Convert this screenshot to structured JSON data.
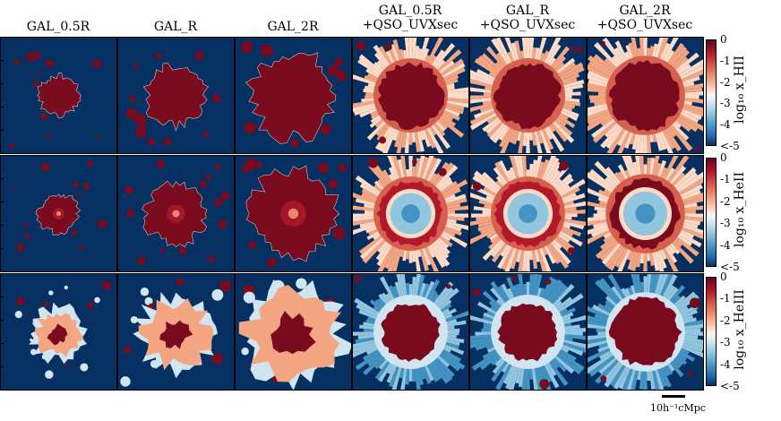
{
  "columns": [
    {
      "line1": "GAL_0.5R",
      "line2": ""
    },
    {
      "line1": "GAL_R",
      "line2": ""
    },
    {
      "line1": "GAL_2R",
      "line2": ""
    },
    {
      "line1": "GAL_0.5R",
      "line2": "+QSO_UVXsec"
    },
    {
      "line1": "GAL_R",
      "line2": "+QSO_UVXsec"
    },
    {
      "line1": "GAL_2R",
      "line2": "+QSO_UVXsec"
    }
  ],
  "rows": [
    {
      "quantity": "log10 x_HII",
      "label_text": "log₁₀ x_HII"
    },
    {
      "quantity": "log10 x_HeII",
      "label_text": "log₁₀ x_HeII"
    },
    {
      "quantity": "log10 x_HeIII",
      "label_text": "log₁₀ x_HeIII"
    }
  ],
  "colorbar": {
    "ticks": [
      "0",
      "-1",
      "-2",
      "-3",
      "-4",
      "<-5"
    ],
    "range": [
      -5,
      0
    ],
    "colors": {
      "high": "#67001f",
      "mid": "#f7f7f7",
      "low": "#053061"
    }
  },
  "scale_bar": {
    "label": "10h⁻¹cMpc"
  },
  "colors": {
    "background_field": "#053061",
    "ionized": "#7a0a1e",
    "ring": "#d6604d",
    "ring_light": "#f4a582",
    "inner_blue": "#92c5de",
    "ice": "#d1e5f0"
  }
}
